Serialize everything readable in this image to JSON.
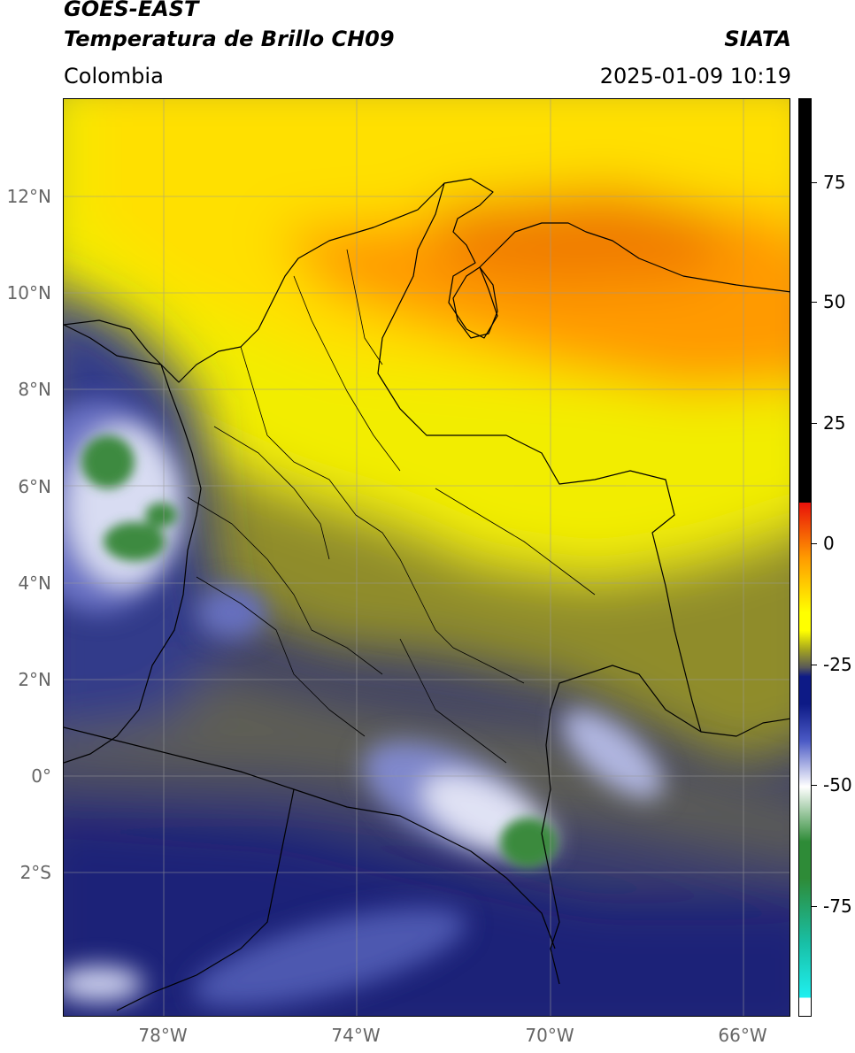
{
  "header": {
    "satellite": "GOES-EAST",
    "product": "Temperatura de Brillo CH09",
    "brand": "SIATA",
    "region": "Colombia",
    "datetime": "2025-01-09 10:19"
  },
  "map": {
    "lat_labels": [
      "12°N",
      "10°N",
      "8°N",
      "6°N",
      "4°N",
      "2°N",
      "0°",
      "2°S"
    ],
    "lon_labels": [
      "78°W",
      "74°W",
      "70°W",
      "66°W"
    ],
    "lat_range": [
      -4.9,
      14.0
    ],
    "lon_range": [
      -80.2,
      -65.2
    ],
    "grid": true
  },
  "colorbar": {
    "tick_labels": [
      "75",
      "50",
      "25",
      "0",
      "-25",
      "-50",
      "-75"
    ],
    "tick_values": [
      75,
      50,
      25,
      0,
      -25,
      -50,
      -75
    ],
    "range": [
      -100,
      90
    ],
    "colors": {
      "black": "#000000",
      "red": "#e8110a",
      "orange": "#ff9a00",
      "yellow": "#ffff00",
      "olive": "#a7a71e",
      "gray": "#585858",
      "navy": "#0d1a86",
      "blue": "#4b5ac5",
      "white": "#ffffff",
      "green": "#2e8b37",
      "teal": "#18bfa5",
      "cyan": "#1ff0f0"
    }
  }
}
